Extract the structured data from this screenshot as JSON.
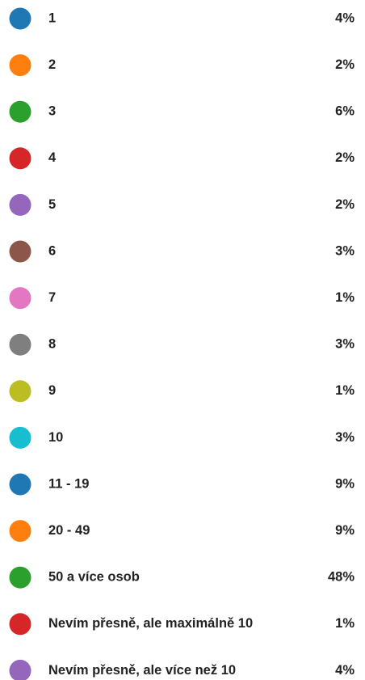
{
  "chart_data": {
    "type": "pie",
    "categories": [
      "1",
      "2",
      "3",
      "4",
      "5",
      "6",
      "7",
      "8",
      "9",
      "10",
      "11 - 19",
      "20 - 49",
      "50 a více osob",
      "Nevím přesně, ale maximálně 10",
      "Nevím přesně, ale více než 10"
    ],
    "values": [
      4,
      2,
      6,
      2,
      2,
      3,
      1,
      3,
      1,
      3,
      9,
      9,
      48,
      1,
      4
    ],
    "value_labels": [
      "4%",
      "2%",
      "6%",
      "2%",
      "2%",
      "3%",
      "1%",
      "3%",
      "1%",
      "3%",
      "9%",
      "9%",
      "48%",
      "1%",
      "4%"
    ],
    "colors": [
      "#1f77b4",
      "#ff7f0e",
      "#2ca02c",
      "#d62728",
      "#9467bd",
      "#8c564b",
      "#e377c2",
      "#7f7f7f",
      "#bcbd22",
      "#17becf",
      "#1f77b4",
      "#ff7f0e",
      "#2ca02c",
      "#d62728",
      "#9467bd"
    ]
  }
}
